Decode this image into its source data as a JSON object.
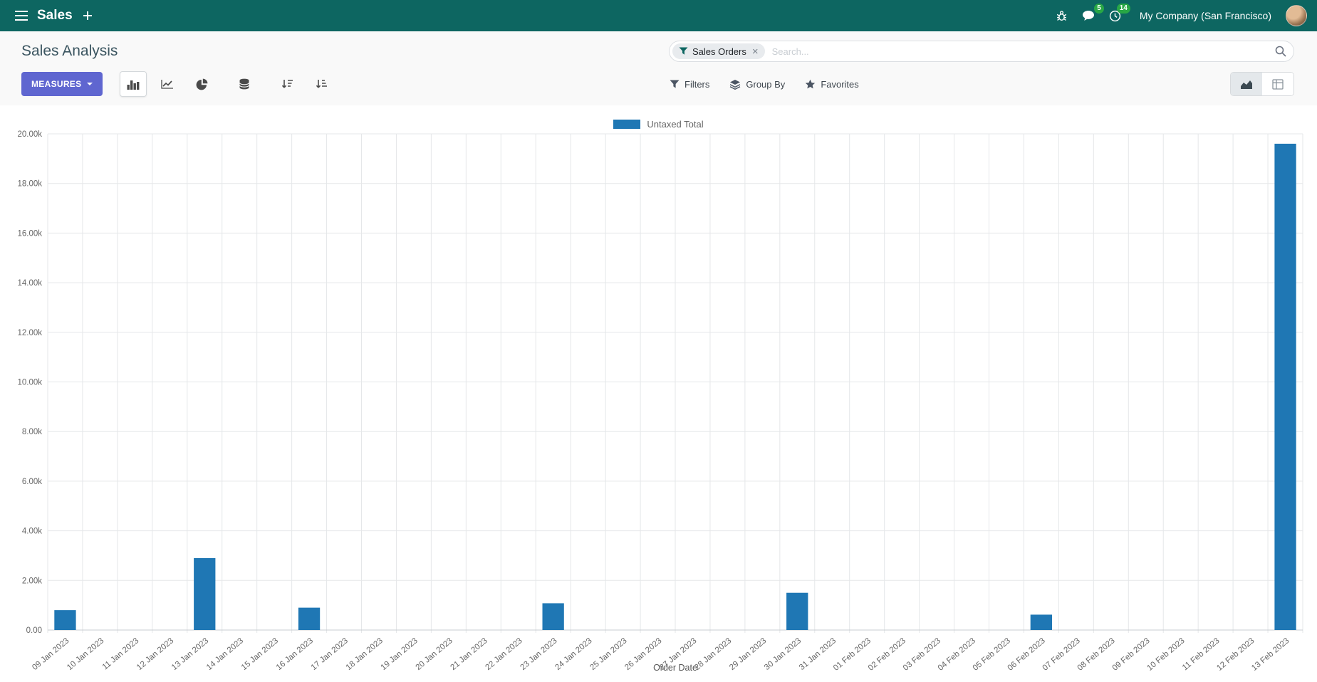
{
  "navbar": {
    "app_name": "Sales",
    "company": "My Company (San Francisco)",
    "messages_count": "5",
    "activities_count": "14"
  },
  "control_panel": {
    "breadcrumb": "Sales Analysis",
    "measures_label": "MEASURES",
    "search": {
      "facet_label": "Sales Orders",
      "facet_remove": "×",
      "placeholder": "Search..."
    },
    "dropdowns": {
      "filters": "Filters",
      "group_by": "Group By",
      "favorites": "Favorites"
    }
  },
  "chart_data": {
    "type": "bar",
    "title": "",
    "xlabel": "Order Date",
    "ylabel": "",
    "ylim": [
      0,
      20000
    ],
    "ytick_step": 2000,
    "ytick_labels": [
      "0.00",
      "2.00k",
      "4.00k",
      "6.00k",
      "8.00k",
      "10.00k",
      "12.00k",
      "14.00k",
      "16.00k",
      "18.00k",
      "20.00k"
    ],
    "grid": true,
    "legend_position": "top",
    "categories": [
      "09 Jan 2023",
      "10 Jan 2023",
      "11 Jan 2023",
      "12 Jan 2023",
      "13 Jan 2023",
      "14 Jan 2023",
      "15 Jan 2023",
      "16 Jan 2023",
      "17 Jan 2023",
      "18 Jan 2023",
      "19 Jan 2023",
      "20 Jan 2023",
      "21 Jan 2023",
      "22 Jan 2023",
      "23 Jan 2023",
      "24 Jan 2023",
      "25 Jan 2023",
      "26 Jan 2023",
      "27 Jan 2023",
      "28 Jan 2023",
      "29 Jan 2023",
      "30 Jan 2023",
      "31 Jan 2023",
      "01 Feb 2023",
      "02 Feb 2023",
      "03 Feb 2023",
      "04 Feb 2023",
      "05 Feb 2023",
      "06 Feb 2023",
      "07 Feb 2023",
      "08 Feb 2023",
      "09 Feb 2023",
      "10 Feb 2023",
      "11 Feb 2023",
      "12 Feb 2023",
      "13 Feb 2023"
    ],
    "series": [
      {
        "name": "Untaxed Total",
        "color": "#1f77b4",
        "values": [
          800,
          0,
          0,
          0,
          2900,
          0,
          0,
          900,
          0,
          0,
          0,
          0,
          0,
          0,
          1080,
          0,
          0,
          0,
          0,
          0,
          0,
          1500,
          0,
          0,
          0,
          0,
          0,
          0,
          620,
          0,
          0,
          0,
          0,
          0,
          0,
          19600
        ]
      }
    ]
  }
}
